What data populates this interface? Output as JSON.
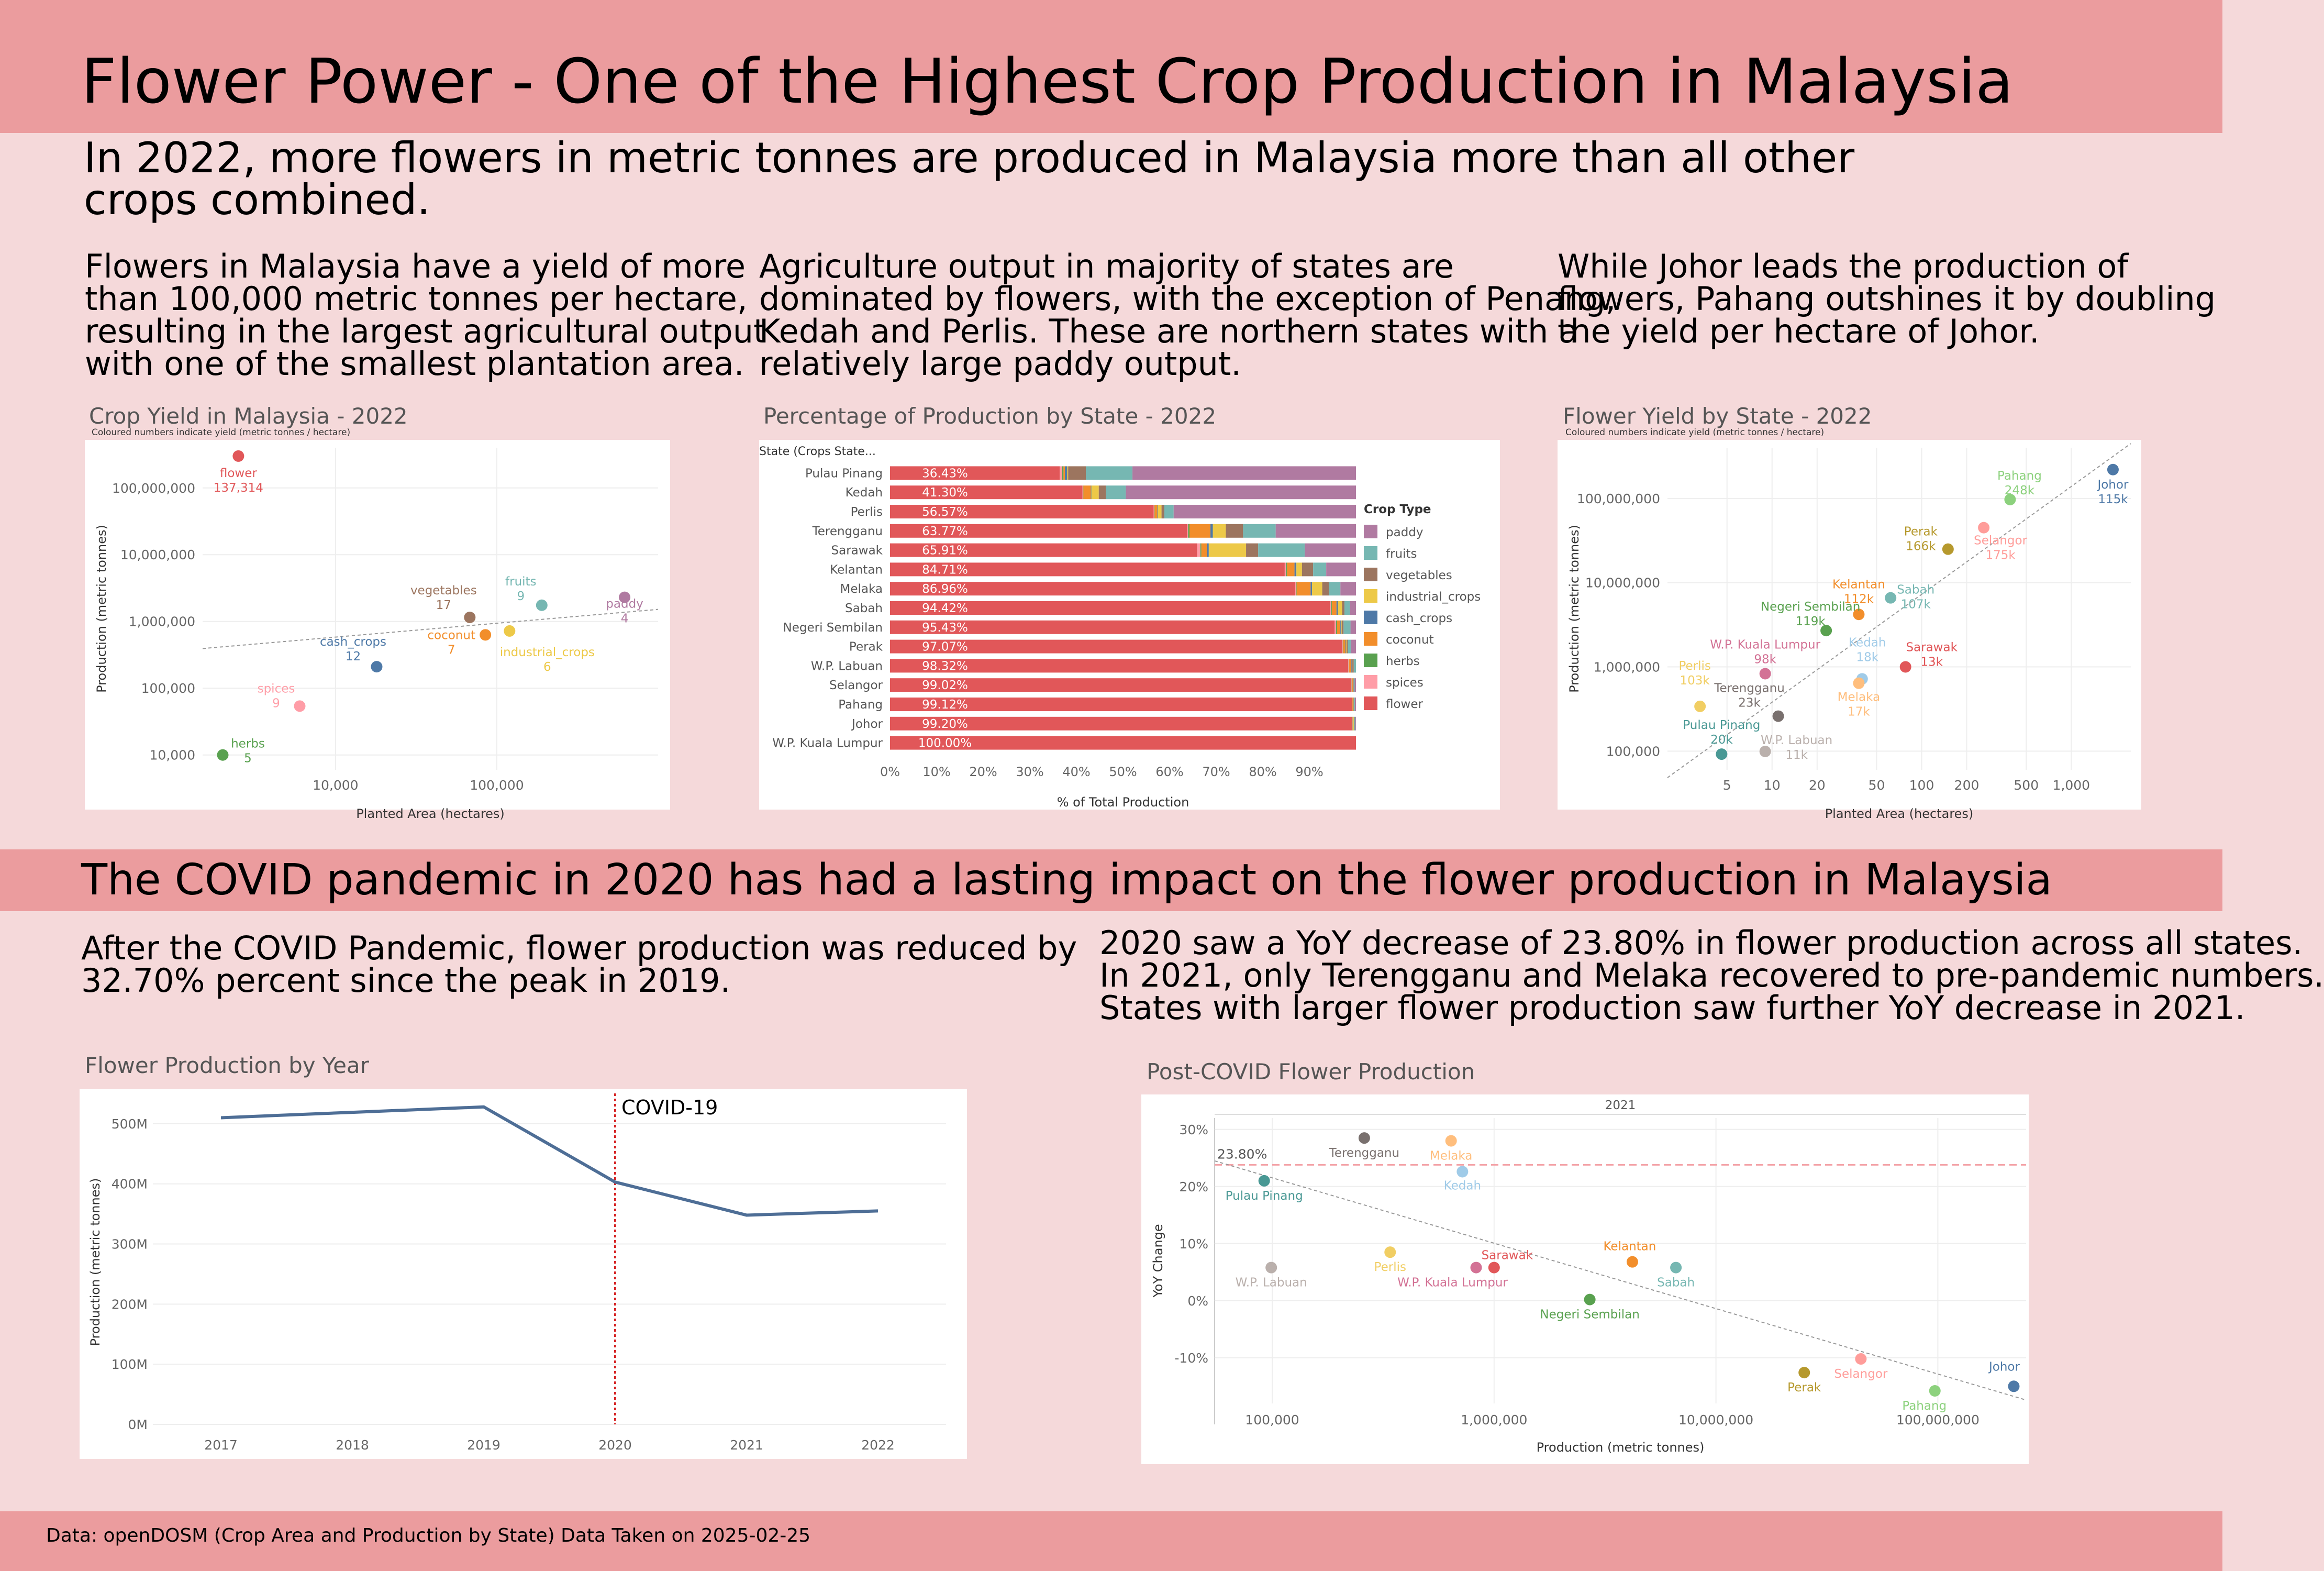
{
  "header": {
    "title": "Flower Power - One of the Highest Crop Production in Malaysia",
    "intro_line1": "In 2022, more flowers in metric tonnes are produced in Malaysia more than all other",
    "intro_line2": "crops combined."
  },
  "section1": {
    "col1": [
      "Flowers in Malaysia have a yield of more",
      "than 100,000 metric tonnes per hectare,",
      "resulting in the largest agricultural output",
      "with one of the smallest plantation area."
    ],
    "col2": [
      "Agriculture output in majority of states are",
      "dominated by flowers, with the exception of Penang,",
      "Kedah and Perlis. These are northern states with a",
      "relatively large paddy output."
    ],
    "col3": [
      "While Johor leads the production of",
      "flowers, Pahang outshines it by doubling",
      "the yield per hectare of Johor."
    ]
  },
  "section2": {
    "banner": "The COVID pandemic in 2020 has had a lasting impact on the flower production in Malaysia",
    "left": [
      "After the COVID Pandemic, flower production was reduced by",
      "32.70% percent since the peak in 2019."
    ],
    "right": [
      "2020 saw a YoY decrease of 23.80% in flower production across all states.",
      "In 2021, only Terengganu and Melaka recovered to pre-pandemic numbers.",
      "States with larger flower production saw further YoY decrease in 2021."
    ]
  },
  "footer": {
    "source": "Data: openDOSM (Crop Area and Production by State) Data Taken on 2025-02-25"
  },
  "colors": {
    "paddy": "#b07aa1",
    "fruits": "#76b7b2",
    "vegetables": "#9c755f",
    "industrial_crops": "#edc948",
    "cash_crops": "#4e79a7",
    "coconut": "#f28e2b",
    "herbs": "#59a14f",
    "spices": "#ff9da7",
    "flower": "#e15759"
  },
  "chart_data": [
    {
      "type": "scatter",
      "title": "Crop Yield in Malaysia - 2022",
      "subtitle": "Coloured numbers indicate yield (metric tonnes / hectare)",
      "xlabel": "Planted Area (hectares)",
      "ylabel": "Production (metric tonnes)",
      "xscale": "log",
      "yscale": "log",
      "xlim": [
        1500,
        1000000
      ],
      "ylim": [
        6000,
        400000000
      ],
      "x_ticks": [
        "10,000",
        "100,000"
      ],
      "y_ticks": [
        "10,000",
        "100,000",
        "1,000,000",
        "10,000,000",
        "100,000,000"
      ],
      "grid": true,
      "trendline": true,
      "points": [
        {
          "name": "flower",
          "yield": "137,314",
          "x": 2500,
          "y": 300000000,
          "color": "#e15759"
        },
        {
          "name": "vegetables",
          "yield": "17",
          "x": 68000,
          "y": 1150000,
          "color": "#9c755f"
        },
        {
          "name": "fruits",
          "yield": "9",
          "x": 190000,
          "y": 1750000,
          "color": "#76b7b2"
        },
        {
          "name": "paddy",
          "yield": "4",
          "x": 620000,
          "y": 2300000,
          "color": "#b07aa1"
        },
        {
          "name": "coconut",
          "yield": "7",
          "x": 85000,
          "y": 630000,
          "color": "#f28e2b"
        },
        {
          "name": "industrial_crops",
          "yield": "6",
          "x": 120000,
          "y": 720000,
          "color": "#edc948"
        },
        {
          "name": "cash_crops",
          "yield": "12",
          "x": 18000,
          "y": 210000,
          "color": "#4e79a7"
        },
        {
          "name": "spices",
          "yield": "9",
          "x": 6000,
          "y": 54000,
          "color": "#ff9da7"
        },
        {
          "name": "herbs",
          "yield": "5",
          "x": 2000,
          "y": 10000,
          "color": "#59a14f"
        }
      ]
    },
    {
      "type": "bar",
      "title": "Percentage of Production by State - 2022",
      "xlabel": "% of Total Production",
      "category_header": "State (Crops State...",
      "legend_title": "Crop Type",
      "legend_position": "right",
      "x_ticks": [
        "0%",
        "10%",
        "20%",
        "30%",
        "40%",
        "50%",
        "60%",
        "70%",
        "80%",
        "90%"
      ],
      "stacked": true,
      "series_order": [
        "flower",
        "spices",
        "herbs",
        "coconut",
        "cash_crops",
        "industrial_crops",
        "vegetables",
        "fruits",
        "paddy"
      ],
      "legend": [
        "paddy",
        "fruits",
        "vegetables",
        "industrial_crops",
        "cash_crops",
        "coconut",
        "herbs",
        "spices",
        "flower"
      ],
      "categories": [
        {
          "state": "Pulau Pinang",
          "label": "36.43%",
          "values": {
            "flower": 36.43,
            "spices": 0.5,
            "herbs": 0.3,
            "coconut": 0.3,
            "cash_crops": 0.5,
            "industrial_crops": 0.2,
            "vegetables": 3.8,
            "fruits": 10.0,
            "paddy": 47.97
          }
        },
        {
          "state": "Kedah",
          "label": "41.30%",
          "values": {
            "flower": 41.3,
            "spices": 0.1,
            "herbs": 0.1,
            "coconut": 1.6,
            "cash_crops": 0.1,
            "industrial_crops": 1.6,
            "vegetables": 1.5,
            "fruits": 4.3,
            "paddy": 49.4
          }
        },
        {
          "state": "Perlis",
          "label": "56.57%",
          "values": {
            "flower": 56.57,
            "spices": 0.1,
            "herbs": 0.1,
            "coconut": 0.6,
            "cash_crops": 0.1,
            "industrial_crops": 0.8,
            "vegetables": 0.6,
            "fruits": 2.0,
            "paddy": 39.13
          }
        },
        {
          "state": "Terengganu",
          "label": "63.77%",
          "values": {
            "flower": 63.77,
            "spices": 0.2,
            "herbs": 0.3,
            "coconut": 4.5,
            "cash_crops": 0.5,
            "industrial_crops": 2.8,
            "vegetables": 3.7,
            "fruits": 7.0,
            "paddy": 17.23
          }
        },
        {
          "state": "Sarawak",
          "label": "65.91%",
          "values": {
            "flower": 65.91,
            "spices": 0.7,
            "herbs": 0.2,
            "coconut": 1.2,
            "cash_crops": 0.4,
            "industrial_crops": 8.0,
            "vegetables": 2.6,
            "fruits": 10.0,
            "paddy": 10.99
          }
        },
        {
          "state": "Kelantan",
          "label": "84.71%",
          "values": {
            "flower": 84.71,
            "spices": 0.3,
            "herbs": 0.2,
            "coconut": 1.6,
            "cash_crops": 0.4,
            "industrial_crops": 1.2,
            "vegetables": 2.4,
            "fruits": 2.8,
            "paddy": 6.39
          }
        },
        {
          "state": "Melaka",
          "label": "86.96%",
          "values": {
            "flower": 86.96,
            "spices": 0.2,
            "herbs": 0.1,
            "coconut": 3.0,
            "cash_crops": 0.3,
            "industrial_crops": 2.2,
            "vegetables": 1.4,
            "fruits": 2.5,
            "paddy": 3.34
          }
        },
        {
          "state": "Sabah",
          "label": "94.42%",
          "values": {
            "flower": 94.42,
            "spices": 0.2,
            "herbs": 0.2,
            "coconut": 1.0,
            "cash_crops": 0.3,
            "industrial_crops": 0.9,
            "vegetables": 0.5,
            "fruits": 1.2,
            "paddy": 1.28
          }
        },
        {
          "state": "Negeri Sembilan",
          "label": "95.43%",
          "values": {
            "flower": 95.43,
            "spices": 0.3,
            "herbs": 0.2,
            "coconut": 0.6,
            "cash_crops": 0.2,
            "industrial_crops": 0.2,
            "vegetables": 0.4,
            "fruits": 1.5,
            "paddy": 1.17
          }
        },
        {
          "state": "Perak",
          "label": "97.07%",
          "values": {
            "flower": 97.07,
            "spices": 0.1,
            "herbs": 0.1,
            "coconut": 0.5,
            "cash_crops": 0.1,
            "industrial_crops": 0.1,
            "vegetables": 0.3,
            "fruits": 0.6,
            "paddy": 1.13
          }
        },
        {
          "state": "W.P. Labuan",
          "label": "98.32%",
          "values": {
            "flower": 98.32,
            "spices": 0.1,
            "herbs": 0.1,
            "coconut": 0.5,
            "cash_crops": 0.1,
            "industrial_crops": 0.1,
            "vegetables": 0.3,
            "fruits": 0.48,
            "paddy": 0.0
          }
        },
        {
          "state": "Selangor",
          "label": "99.02%",
          "values": {
            "flower": 99.02,
            "spices": 0.05,
            "herbs": 0.05,
            "coconut": 0.2,
            "cash_crops": 0.05,
            "industrial_crops": 0.05,
            "vegetables": 0.1,
            "fruits": 0.2,
            "paddy": 0.28
          }
        },
        {
          "state": "Pahang",
          "label": "99.12%",
          "values": {
            "flower": 99.12,
            "spices": 0.05,
            "herbs": 0.05,
            "coconut": 0.1,
            "cash_crops": 0.05,
            "industrial_crops": 0.1,
            "vegetables": 0.1,
            "fruits": 0.2,
            "paddy": 0.23
          }
        },
        {
          "state": "Johor",
          "label": "99.20%",
          "values": {
            "flower": 99.2,
            "spices": 0.05,
            "herbs": 0.05,
            "coconut": 0.1,
            "cash_crops": 0.05,
            "industrial_crops": 0.1,
            "vegetables": 0.1,
            "fruits": 0.2,
            "paddy": 0.15
          }
        },
        {
          "state": "W.P. Kuala Lumpur",
          "label": "100.00%",
          "values": {
            "flower": 100.0,
            "spices": 0,
            "herbs": 0,
            "coconut": 0,
            "cash_crops": 0,
            "industrial_crops": 0,
            "vegetables": 0,
            "fruits": 0,
            "paddy": 0
          }
        }
      ]
    },
    {
      "type": "scatter",
      "title": "Flower Yield by State - 2022",
      "subtitle": "Coloured numbers indicate yield (metric tonnes / hectare)",
      "xlabel": "Planted Area (hectares)",
      "ylabel": "Production (metric tonnes)",
      "xscale": "log",
      "yscale": "log",
      "xlim": [
        2,
        2500
      ],
      "ylim": [
        60000,
        400000000
      ],
      "x_ticks": [
        "5",
        "10",
        "20",
        "50",
        "100",
        "200",
        "500",
        "1,000"
      ],
      "y_ticks": [
        "100,000",
        "1,000,000",
        "10,000,000",
        "100,000,000"
      ],
      "grid": true,
      "trendline": true,
      "points": [
        {
          "name": "Johor",
          "yield": "115k",
          "x": 1900,
          "y": 220000000,
          "color": "#4e79a7"
        },
        {
          "name": "Pahang",
          "yield": "248k",
          "x": 390,
          "y": 97000000,
          "color": "#8cd17d"
        },
        {
          "name": "Selangor",
          "yield": "175k",
          "x": 260,
          "y": 45000000,
          "color": "#ff9d9a"
        },
        {
          "name": "Perak",
          "yield": "166k",
          "x": 150,
          "y": 25000000,
          "color": "#b6992d"
        },
        {
          "name": "Kelantan",
          "yield": "112k",
          "x": 38,
          "y": 4200000,
          "color": "#f28e2b"
        },
        {
          "name": "Sabah",
          "yield": "107k",
          "x": 62,
          "y": 6600000,
          "color": "#76b7b2"
        },
        {
          "name": "Negeri Sembilan",
          "yield": "119k",
          "x": 23,
          "y": 2700000,
          "color": "#59a14f"
        },
        {
          "name": "Kedah",
          "yield": "18k",
          "x": 40,
          "y": 720000,
          "color": "#a0cbe8"
        },
        {
          "name": "Melaka",
          "yield": "17k",
          "x": 38,
          "y": 640000,
          "color": "#ffbe7d"
        },
        {
          "name": "Sarawak",
          "yield": "13k",
          "x": 78,
          "y": 1000000,
          "color": "#e15759"
        },
        {
          "name": "W.P. Kuala Lumpur",
          "yield": "98k",
          "x": 9,
          "y": 830000,
          "color": "#d37295"
        },
        {
          "name": "Perlis",
          "yield": "103k",
          "x": 3.3,
          "y": 340000,
          "color": "#f1ce63"
        },
        {
          "name": "Terengganu",
          "yield": "23k",
          "x": 11,
          "y": 260000,
          "color": "#79706e"
        },
        {
          "name": "Pulau Pinang",
          "yield": "20k",
          "x": 4.6,
          "y": 92000,
          "color": "#499894"
        },
        {
          "name": "W.P. Labuan",
          "yield": "11k",
          "x": 9,
          "y": 99000,
          "color": "#bab0ac"
        }
      ]
    },
    {
      "type": "line",
      "title": "Flower Production by Year",
      "ylabel": "Production (metric tonnes)",
      "x": [
        "2017",
        "2018",
        "2019",
        "2020",
        "2021",
        "2022"
      ],
      "values": [
        510,
        519,
        528,
        403,
        348,
        355
      ],
      "units": "M metric tonnes",
      "ylim": [
        0,
        540
      ],
      "y_ticks": [
        "0M",
        "100M",
        "200M",
        "300M",
        "400M",
        "500M"
      ],
      "annotation": {
        "x": "2020",
        "label": "COVID-19"
      },
      "color": "#4e6e96",
      "grid": true
    },
    {
      "type": "scatter",
      "title": "Post-COVID Flower Production",
      "facet_label": "2021",
      "xlabel": "Production (metric tonnes)",
      "ylabel": "YoY Change",
      "xscale": "log",
      "xlim": [
        55000,
        250000000
      ],
      "ylim": [
        -18,
        32
      ],
      "x_ticks": [
        "100,000",
        "1,000,000",
        "10,000,000",
        "100,000,000"
      ],
      "y_ticks": [
        "30%",
        "20%",
        "10%",
        "0%",
        "-10%"
      ],
      "reference_line": {
        "value": 23.8,
        "label": "23.80%"
      },
      "trendline": true,
      "points": [
        {
          "name": "Terengganu",
          "x": 260000,
          "y": 28.5,
          "color": "#79706e"
        },
        {
          "name": "Melaka",
          "x": 640000,
          "y": 28.0,
          "color": "#ffbe7d"
        },
        {
          "name": "Kedah",
          "x": 720000,
          "y": 22.6,
          "color": "#a0cbe8"
        },
        {
          "name": "Pulau Pinang",
          "x": 92000,
          "y": 21.0,
          "color": "#499894"
        },
        {
          "name": "W.P. Labuan",
          "x": 99000,
          "y": 5.8,
          "color": "#bab0ac"
        },
        {
          "name": "Perlis",
          "x": 340000,
          "y": 8.5,
          "color": "#f1ce63"
        },
        {
          "name": "W.P. Kuala Lumpur",
          "x": 830000,
          "y": 5.8,
          "color": "#d37295"
        },
        {
          "name": "Sarawak",
          "x": 1000000,
          "y": 5.8,
          "color": "#e15759"
        },
        {
          "name": "Kelantan",
          "x": 4200000,
          "y": 6.8,
          "color": "#f28e2b"
        },
        {
          "name": "Sabah",
          "x": 6600000,
          "y": 5.8,
          "color": "#76b7b2"
        },
        {
          "name": "Negeri Sembilan",
          "x": 2700000,
          "y": 0.2,
          "color": "#59a14f"
        },
        {
          "name": "Selangor",
          "x": 45000000,
          "y": -10.2,
          "color": "#ff9d9a"
        },
        {
          "name": "Perak",
          "x": 25000000,
          "y": -12.6,
          "color": "#b6992d"
        },
        {
          "name": "Pahang",
          "x": 97000000,
          "y": -15.8,
          "color": "#8cd17d"
        },
        {
          "name": "Johor",
          "x": 220000000,
          "y": -15.0,
          "color": "#4e79a7"
        }
      ]
    }
  ]
}
